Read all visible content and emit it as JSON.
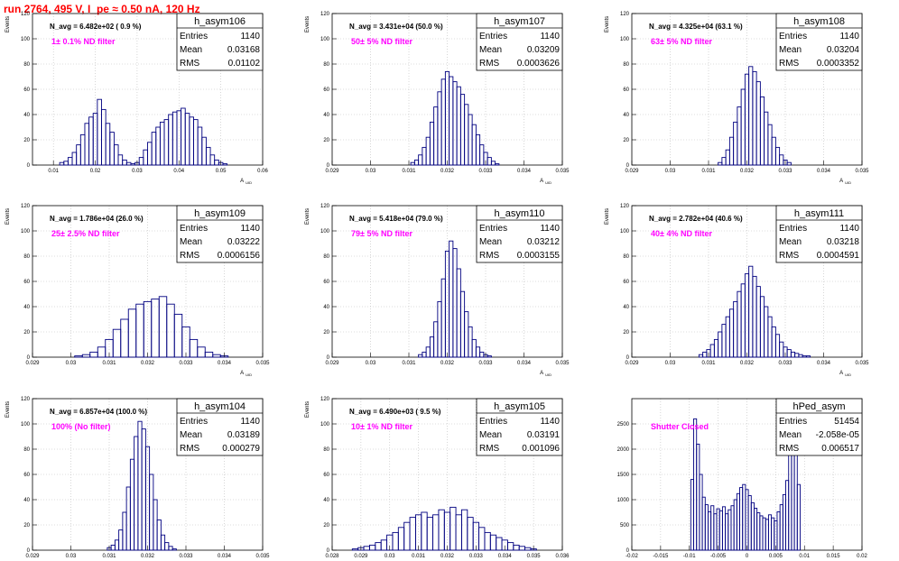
{
  "page": {
    "title": "run 2764,   495 V, I_pe ≈ 0.50 nA, 120 Hz",
    "colors": {
      "histogram": "#000080",
      "annotation": "#ff00ff",
      "title": "#ff0000",
      "grid": "#bdbdbd"
    }
  },
  "chart_data": [
    {
      "type": "histogram",
      "name": "h_asym106",
      "stats": {
        "entries": "1140",
        "mean": "0.03168",
        "rms": "0.01102"
      },
      "navg": "N_avg = 6.482e+02 ( 0.9 %)",
      "note": "1± 0.1% ND filter",
      "ylabel": "Events",
      "xlabel": "A_UID",
      "xlim": [
        0.005,
        0.06
      ],
      "ylim": [
        0,
        120
      ],
      "xticks": [
        0.01,
        0.02,
        0.03,
        0.04,
        0.05,
        0.06
      ],
      "xticklabels": [
        "0.01",
        "0.02",
        "0.03",
        "0.04",
        "0.05",
        "0.06"
      ],
      "yticks": [
        0,
        20,
        40,
        60,
        80,
        100,
        120
      ],
      "grid": true,
      "x": [
        0.012,
        0.013,
        0.014,
        0.015,
        0.016,
        0.017,
        0.018,
        0.019,
        0.02,
        0.021,
        0.022,
        0.023,
        0.024,
        0.025,
        0.026,
        0.027,
        0.028,
        0.029,
        0.03,
        0.031,
        0.032,
        0.033,
        0.034,
        0.035,
        0.036,
        0.037,
        0.038,
        0.039,
        0.04,
        0.041,
        0.042,
        0.043,
        0.044,
        0.045,
        0.046,
        0.047,
        0.048,
        0.049,
        0.05,
        0.051
      ],
      "y": [
        2,
        3,
        6,
        10,
        16,
        24,
        33,
        38,
        41,
        52,
        44,
        33,
        26,
        16,
        8,
        4,
        2,
        1,
        2,
        6,
        12,
        18,
        26,
        30,
        34,
        36,
        40,
        42,
        43,
        45,
        41,
        38,
        36,
        30,
        22,
        14,
        8,
        4,
        2,
        1
      ]
    },
    {
      "type": "histogram",
      "name": "h_asym107",
      "stats": {
        "entries": "1140",
        "mean": "0.03209",
        "rms": "0.0003626"
      },
      "navg": "N_avg = 3.431e+04 (50.0 %)",
      "note": "50± 5% ND filter",
      "ylabel": "Events",
      "xlabel": "A_UID",
      "xlim": [
        0.029,
        0.035
      ],
      "ylim": [
        0,
        120
      ],
      "xticks": [
        0.029,
        0.03,
        0.031,
        0.032,
        0.033,
        0.034,
        0.035
      ],
      "xticklabels": [
        "0.029",
        "0.03",
        "0.031",
        "0.032",
        "0.033",
        "0.034",
        "0.035"
      ],
      "yticks": [
        0,
        20,
        40,
        60,
        80,
        100,
        120
      ],
      "grid": true,
      "x": [
        0.0311,
        0.0312,
        0.0313,
        0.0314,
        0.0315,
        0.0316,
        0.0317,
        0.0318,
        0.0319,
        0.032,
        0.0321,
        0.0322,
        0.0323,
        0.0324,
        0.0325,
        0.0326,
        0.0327,
        0.0328,
        0.0329,
        0.033,
        0.0331,
        0.0332,
        0.0333
      ],
      "y": [
        2,
        4,
        8,
        14,
        22,
        34,
        46,
        58,
        68,
        74,
        70,
        66,
        62,
        56,
        48,
        40,
        32,
        24,
        16,
        10,
        6,
        3,
        1
      ]
    },
    {
      "type": "histogram",
      "name": "h_asym108",
      "stats": {
        "entries": "1140",
        "mean": "0.03204",
        "rms": "0.0003352"
      },
      "navg": "N_avg = 4.325e+04 (63.1 %)",
      "note": "63± 5% ND filter",
      "ylabel": "Events",
      "xlabel": "A_UID",
      "xlim": [
        0.029,
        0.035
      ],
      "ylim": [
        0,
        120
      ],
      "xticks": [
        0.029,
        0.03,
        0.031,
        0.032,
        0.033,
        0.034,
        0.035
      ],
      "xticklabels": [
        "0.029",
        "0.03",
        "0.031",
        "0.032",
        "0.033",
        "0.034",
        "0.035"
      ],
      "yticks": [
        0,
        20,
        40,
        60,
        80,
        100,
        120
      ],
      "grid": true,
      "x": [
        0.0313,
        0.0314,
        0.0315,
        0.0316,
        0.0317,
        0.0318,
        0.0319,
        0.032,
        0.0321,
        0.0322,
        0.0323,
        0.0324,
        0.0325,
        0.0326,
        0.0327,
        0.0328,
        0.0329,
        0.033,
        0.0331
      ],
      "y": [
        2,
        6,
        12,
        22,
        34,
        46,
        60,
        72,
        78,
        74,
        66,
        54,
        42,
        32,
        22,
        14,
        8,
        4,
        2
      ]
    },
    {
      "type": "histogram",
      "name": "h_asym109",
      "stats": {
        "entries": "1140",
        "mean": "0.03222",
        "rms": "0.0006156"
      },
      "navg": "N_avg = 1.786e+04 (26.0 %)",
      "note": "25± 2.5% ND filter",
      "ylabel": "Events",
      "xlabel": "A_UID",
      "xlim": [
        0.029,
        0.035
      ],
      "ylim": [
        0,
        120
      ],
      "xticks": [
        0.029,
        0.03,
        0.031,
        0.032,
        0.033,
        0.034,
        0.035
      ],
      "xticklabels": [
        "0.029",
        "0.03",
        "0.031",
        "0.032",
        "0.033",
        "0.034",
        "0.035"
      ],
      "yticks": [
        0,
        20,
        40,
        60,
        80,
        100,
        120
      ],
      "grid": true,
      "x": [
        0.0302,
        0.0304,
        0.0306,
        0.0308,
        0.031,
        0.0312,
        0.0314,
        0.0316,
        0.0318,
        0.032,
        0.0322,
        0.0324,
        0.0326,
        0.0328,
        0.033,
        0.0332,
        0.0334,
        0.0336,
        0.0338,
        0.034
      ],
      "y": [
        1,
        2,
        4,
        8,
        14,
        22,
        30,
        38,
        42,
        44,
        46,
        48,
        42,
        34,
        24,
        14,
        8,
        4,
        2,
        1
      ]
    },
    {
      "type": "histogram",
      "name": "h_asym110",
      "stats": {
        "entries": "1140",
        "mean": "0.03212",
        "rms": "0.0003155"
      },
      "navg": "N_avg = 5.418e+04 (79.0 %)",
      "note": "79± 5% ND filter",
      "ylabel": "Events",
      "xlabel": "A_UID",
      "xlim": [
        0.029,
        0.035
      ],
      "ylim": [
        0,
        120
      ],
      "xticks": [
        0.029,
        0.03,
        0.031,
        0.032,
        0.033,
        0.034,
        0.035
      ],
      "xticklabels": [
        "0.029",
        "0.03",
        "0.031",
        "0.032",
        "0.033",
        "0.034",
        "0.035"
      ],
      "yticks": [
        0,
        20,
        40,
        60,
        80,
        100,
        120
      ],
      "grid": true,
      "x": [
        0.0313,
        0.0314,
        0.0315,
        0.0316,
        0.0317,
        0.0318,
        0.0319,
        0.032,
        0.0321,
        0.0322,
        0.0323,
        0.0324,
        0.0325,
        0.0326,
        0.0327,
        0.0328,
        0.0329,
        0.033,
        0.0331
      ],
      "y": [
        2,
        4,
        8,
        16,
        28,
        44,
        62,
        84,
        92,
        86,
        70,
        52,
        36,
        24,
        14,
        8,
        4,
        2,
        1
      ]
    },
    {
      "type": "histogram",
      "name": "h_asym111",
      "stats": {
        "entries": "1140",
        "mean": "0.03218",
        "rms": "0.0004591"
      },
      "navg": "N_avg = 2.782e+04 (40.6 %)",
      "note": "40± 4% ND filter",
      "ylabel": "Events",
      "xlabel": "A_UID",
      "xlim": [
        0.029,
        0.035
      ],
      "ylim": [
        0,
        120
      ],
      "xticks": [
        0.029,
        0.03,
        0.031,
        0.032,
        0.033,
        0.034,
        0.035
      ],
      "xticklabels": [
        "0.029",
        "0.03",
        "0.031",
        "0.032",
        "0.033",
        "0.034",
        "0.035"
      ],
      "yticks": [
        0,
        20,
        40,
        60,
        80,
        100,
        120
      ],
      "grid": true,
      "x": [
        0.0308,
        0.0309,
        0.031,
        0.0311,
        0.0312,
        0.0313,
        0.0314,
        0.0315,
        0.0316,
        0.0317,
        0.0318,
        0.0319,
        0.032,
        0.0321,
        0.0322,
        0.0323,
        0.0324,
        0.0325,
        0.0326,
        0.0327,
        0.0328,
        0.0329,
        0.033,
        0.0331,
        0.0332,
        0.0333,
        0.0334,
        0.0335,
        0.0336
      ],
      "y": [
        2,
        4,
        6,
        10,
        14,
        20,
        26,
        32,
        38,
        44,
        52,
        58,
        66,
        72,
        64,
        56,
        48,
        40,
        32,
        24,
        18,
        12,
        8,
        6,
        4,
        3,
        2,
        1,
        1
      ]
    },
    {
      "type": "histogram",
      "name": "h_asym104",
      "stats": {
        "entries": "1140",
        "mean": "0.03189",
        "rms": "0.000279"
      },
      "navg": "N_avg = 6.857e+04 (100.0 %)",
      "note": "100% (No filter)",
      "ylabel": "Events",
      "xlabel": "A_UID",
      "xlim": [
        0.029,
        0.035
      ],
      "ylim": [
        0,
        120
      ],
      "xticks": [
        0.029,
        0.03,
        0.031,
        0.032,
        0.033,
        0.034,
        0.035
      ],
      "xticklabels": [
        "0.029",
        "0.03",
        "0.031",
        "0.032",
        "0.033",
        "0.034",
        "0.035"
      ],
      "yticks": [
        0,
        20,
        40,
        60,
        80,
        100,
        120
      ],
      "grid": true,
      "x": [
        0.031,
        0.0311,
        0.0312,
        0.0313,
        0.0314,
        0.0315,
        0.0316,
        0.0317,
        0.0318,
        0.0319,
        0.032,
        0.0321,
        0.0322,
        0.0323,
        0.0324,
        0.0325,
        0.0326,
        0.0327
      ],
      "y": [
        2,
        4,
        8,
        16,
        30,
        50,
        72,
        90,
        102,
        96,
        82,
        60,
        40,
        24,
        12,
        6,
        3,
        1
      ]
    },
    {
      "type": "histogram",
      "name": "h_asym105",
      "stats": {
        "entries": "1140",
        "mean": "0.03191",
        "rms": "0.001096"
      },
      "navg": "N_avg = 6.490e+03 ( 9.5 %)",
      "note": "10± 1% ND filter",
      "ylabel": "Events",
      "xlabel": "A_UID",
      "xlim": [
        0.028,
        0.036
      ],
      "ylim": [
        0,
        120
      ],
      "xticks": [
        0.028,
        0.029,
        0.03,
        0.031,
        0.032,
        0.033,
        0.034,
        0.035,
        0.036
      ],
      "xticklabels": [
        "0.028",
        "0.029",
        "0.03",
        "0.031",
        "0.032",
        "0.033",
        "0.034",
        "0.035",
        "0.036"
      ],
      "yticks": [
        0,
        20,
        40,
        60,
        80,
        100,
        120
      ],
      "grid": true,
      "x": [
        0.0288,
        0.029,
        0.0292,
        0.0294,
        0.0296,
        0.0298,
        0.03,
        0.0302,
        0.0304,
        0.0306,
        0.0308,
        0.031,
        0.0312,
        0.0314,
        0.0316,
        0.0318,
        0.032,
        0.0322,
        0.0324,
        0.0326,
        0.0328,
        0.033,
        0.0332,
        0.0334,
        0.0336,
        0.0338,
        0.034,
        0.0342,
        0.0344,
        0.0346,
        0.0348,
        0.035
      ],
      "y": [
        1,
        2,
        3,
        4,
        6,
        8,
        12,
        14,
        18,
        22,
        26,
        28,
        30,
        26,
        28,
        32,
        30,
        34,
        28,
        32,
        26,
        22,
        18,
        14,
        12,
        10,
        8,
        6,
        4,
        3,
        2,
        1
      ]
    },
    {
      "type": "histogram",
      "name": "hPed_asym",
      "stats": {
        "entries": "51454",
        "mean": "-2.058e-05",
        "rms": "0.006517"
      },
      "navg": "",
      "note": "Shutter Closed",
      "ylabel": "",
      "xlabel": "",
      "xlim": [
        -0.02,
        0.02
      ],
      "ylim": [
        0,
        3000
      ],
      "xticks": [
        -0.02,
        -0.015,
        -0.01,
        -0.005,
        0,
        0.005,
        0.01,
        0.015,
        0.02
      ],
      "xticklabels": [
        "-0.02",
        "-0.015",
        "-0.01",
        "-0.005",
        "0",
        "0.005",
        "0.01",
        "0.015",
        "0.02"
      ],
      "yticks": [
        0,
        500,
        1000,
        1500,
        2000,
        2500
      ],
      "grid": true,
      "x": [
        -0.0095,
        -0.009,
        -0.0085,
        -0.008,
        -0.0075,
        -0.007,
        -0.0065,
        -0.006,
        -0.0055,
        -0.005,
        -0.0045,
        -0.004,
        -0.0035,
        -0.003,
        -0.0025,
        -0.002,
        -0.0015,
        -0.001,
        -0.0005,
        0,
        0.0005,
        0.001,
        0.0015,
        0.002,
        0.0025,
        0.003,
        0.0035,
        0.004,
        0.0045,
        0.005,
        0.0055,
        0.006,
        0.0065,
        0.007,
        0.0075,
        0.008,
        0.0085,
        0.009
      ],
      "y": [
        1400,
        2600,
        2100,
        1500,
        1050,
        900,
        760,
        880,
        720,
        820,
        780,
        860,
        720,
        800,
        880,
        1000,
        1120,
        1240,
        1300,
        1200,
        1080,
        940,
        830,
        740,
        680,
        640,
        610,
        700,
        640,
        580,
        760,
        900,
        1100,
        1380,
        1900,
        2700,
        2850,
        1300
      ]
    }
  ]
}
